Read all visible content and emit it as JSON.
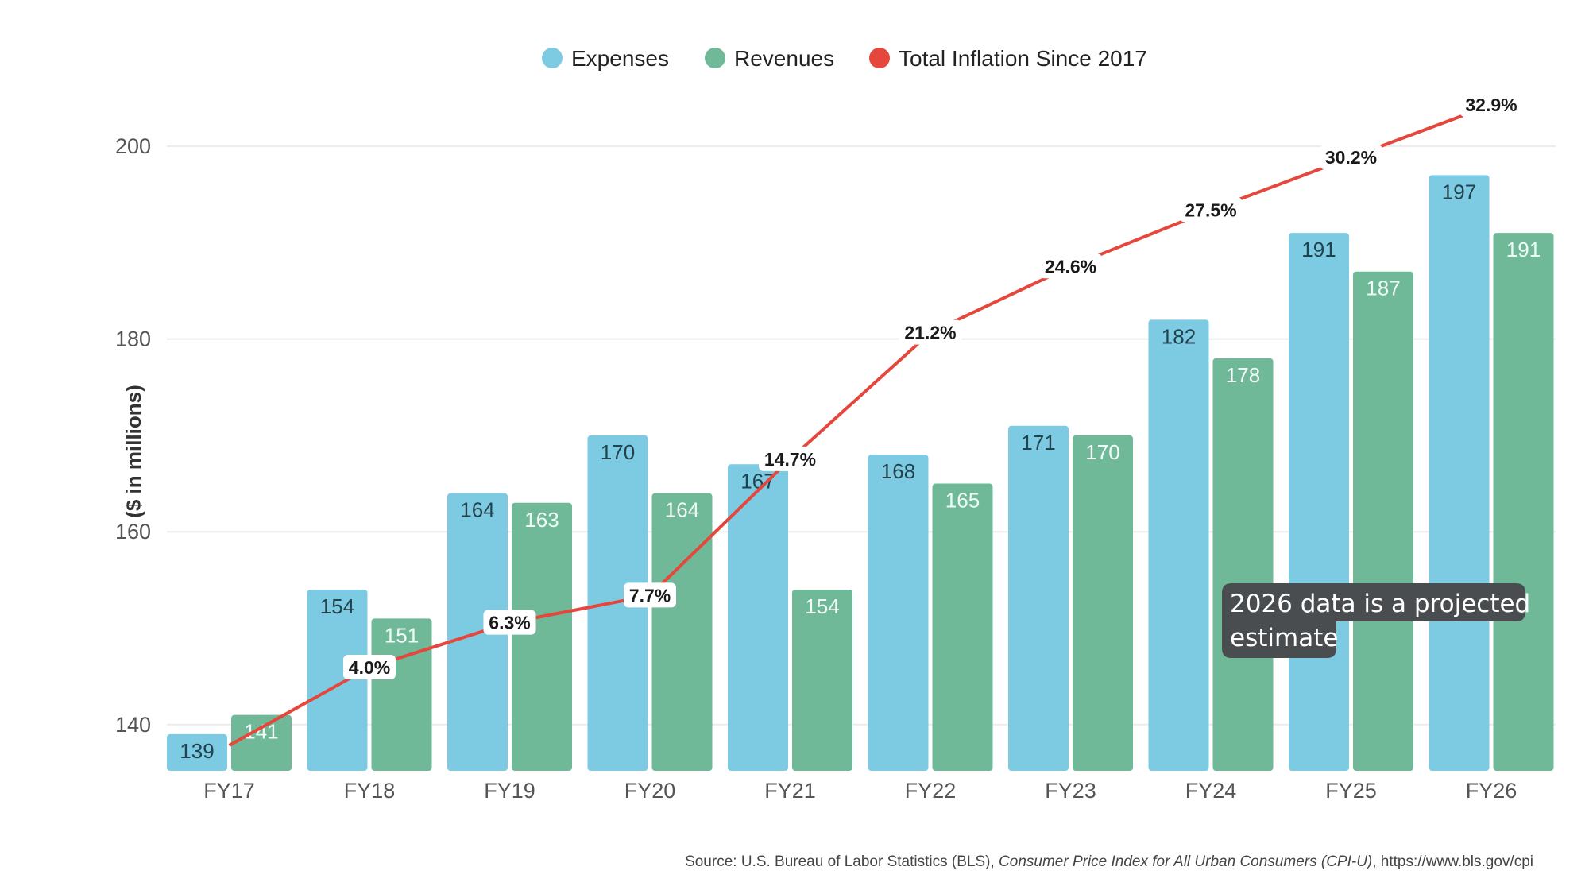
{
  "colors": {
    "expenses": "#7ccbe2",
    "revenues": "#6fb898",
    "inflation": "#e5473c",
    "expenses_label": "#24424e",
    "revenues_label": "#f2fbf6",
    "grid": "#ececec",
    "note_bg": "#4a4d50"
  },
  "chart_data": {
    "type": "bar",
    "categories": [
      "FY17",
      "FY18",
      "FY19",
      "FY20",
      "FY21",
      "FY22",
      "FY23",
      "FY24",
      "FY25",
      "FY26"
    ],
    "series": [
      {
        "name": "Expenses",
        "values": [
          139,
          154,
          164,
          170,
          167,
          168,
          171,
          182,
          191,
          197
        ]
      },
      {
        "name": "Revenues",
        "values": [
          141,
          151,
          163,
          164,
          154,
          165,
          170,
          178,
          187,
          191
        ]
      }
    ],
    "line_series": {
      "name": "Total Inflation Since 2017",
      "values": [
        0.0,
        4.0,
        6.3,
        7.7,
        14.7,
        21.2,
        24.6,
        27.5,
        30.2,
        32.9
      ],
      "labels": [
        "",
        "4.0%",
        "6.3%",
        "7.7%",
        "14.7%",
        "21.2%",
        "24.6%",
        "27.5%",
        "30.2%",
        "32.9%"
      ]
    },
    "ylabel": "($ in millions)",
    "yticks": [
      140,
      160,
      180,
      200
    ],
    "ylim": [
      135,
      207
    ],
    "grid": true,
    "legend_position": "top-center",
    "legend": [
      "Expenses",
      "Revenues",
      "Total Inflation Since 2017"
    ],
    "annotation": {
      "lines": [
        "2026 data is a projected",
        "estimate"
      ]
    }
  },
  "source": {
    "prefix": "Source: U.S. Bureau of Labor Statistics (BLS), ",
    "title": "Consumer Price Index for All Urban Consumers (CPI-U)",
    "suffix": ", https://www.bls.gov/cpi"
  }
}
